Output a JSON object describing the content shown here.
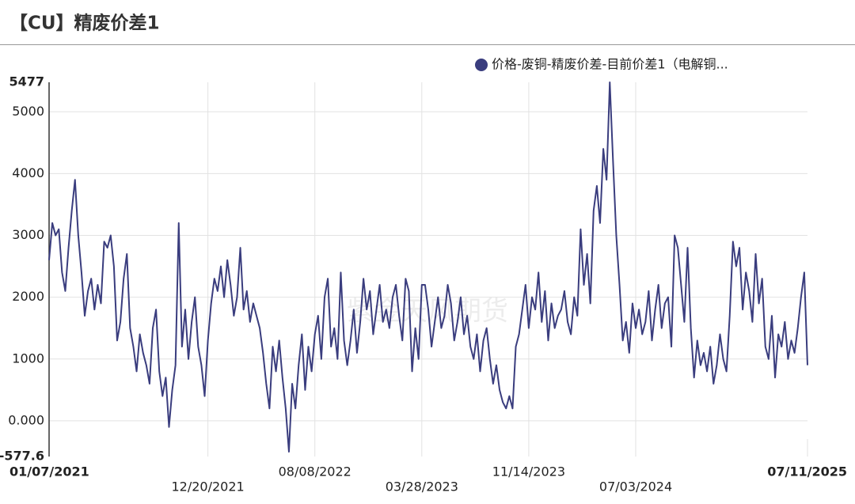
{
  "chart_data": {
    "type": "line",
    "title": "【CU】精废价差1",
    "watermark": "紫金天风期货",
    "categories": [
      "01/07/2021",
      null,
      null,
      null,
      null,
      null,
      null,
      null,
      null,
      null,
      null,
      null,
      null,
      null,
      null,
      null,
      null,
      null,
      null,
      null,
      null,
      null,
      null,
      null,
      null,
      null,
      null,
      null,
      null,
      null,
      null,
      null,
      null,
      null,
      null,
      null,
      null,
      null,
      null,
      null,
      null,
      null,
      null,
      null,
      null,
      null,
      null,
      null,
      null,
      "12/20/2021",
      null,
      null,
      null,
      null,
      null,
      null,
      null,
      null,
      null,
      null,
      null,
      null,
      null,
      null,
      null,
      null,
      null,
      null,
      null,
      null,
      null,
      null,
      null,
      null,
      null,
      null,
      null,
      null,
      null,
      null,
      null,
      null,
      "08/08/2022",
      null,
      null,
      null,
      null,
      null,
      null,
      null,
      null,
      null,
      null,
      null,
      null,
      null,
      null,
      null,
      null,
      null,
      null,
      null,
      null,
      null,
      null,
      null,
      null,
      null,
      null,
      null,
      null,
      null,
      null,
      null,
      null,
      "03/28/2023",
      null,
      null,
      null,
      null,
      null,
      null,
      null,
      null,
      null,
      null,
      null,
      null,
      null,
      null,
      null,
      null,
      null,
      null,
      null,
      null,
      null,
      null,
      null,
      null,
      null,
      null,
      null,
      null,
      null,
      null,
      null,
      null,
      "11/14/2023",
      null,
      null,
      null,
      null,
      null,
      null,
      null,
      null,
      null,
      null,
      null,
      null,
      null,
      null,
      null,
      null,
      null,
      null,
      null,
      null,
      null,
      null,
      null,
      null,
      null,
      null,
      null,
      null,
      null,
      null,
      null,
      null,
      "07/03/2024",
      null,
      null,
      null,
      null,
      null,
      null,
      null,
      null,
      null,
      null,
      null,
      null,
      null,
      null,
      null,
      null,
      null,
      null,
      null,
      null,
      null,
      null,
      null,
      null,
      null,
      null,
      null,
      null,
      null,
      null,
      null,
      null,
      null,
      null,
      null,
      null,
      null,
      null,
      null,
      null,
      null,
      null,
      null,
      null,
      null,
      null,
      null,
      null,
      null,
      null,
      null,
      null,
      "07/11/2025"
    ],
    "series": [
      {
        "name": "价格-废铜-精废价差-目前价差1（电解铜...",
        "color": "#3a3d7e",
        "values": [
          2600,
          3200,
          3000,
          3100,
          2400,
          2100,
          2800,
          3400,
          3900,
          3000,
          2400,
          1700,
          2100,
          2300,
          1800,
          2200,
          1900,
          2900,
          2800,
          3000,
          2500,
          1300,
          1600,
          2300,
          2700,
          1500,
          1200,
          800,
          1400,
          1100,
          900,
          600,
          1500,
          1800,
          800,
          400,
          700,
          -100,
          500,
          900,
          3200,
          1200,
          1800,
          1000,
          1600,
          2000,
          1200,
          900,
          400,
          1300,
          1900,
          2300,
          2100,
          2500,
          2000,
          2600,
          2200,
          1700,
          2000,
          2800,
          1800,
          2100,
          1600,
          1900,
          1700,
          1500,
          1100,
          600,
          200,
          1200,
          800,
          1300,
          700,
          200,
          -500,
          600,
          200,
          900,
          1400,
          500,
          1200,
          800,
          1400,
          1700,
          1000,
          2000,
          2300,
          1200,
          1500,
          1000,
          2400,
          1300,
          900,
          1300,
          1800,
          1100,
          1600,
          2300,
          1800,
          2100,
          1400,
          1800,
          2200,
          1600,
          1800,
          1500,
          2000,
          2200,
          1700,
          1300,
          2300,
          2100,
          800,
          1500,
          1000,
          2200,
          2200,
          1800,
          1200,
          1600,
          2000,
          1500,
          1700,
          2200,
          1900,
          1300,
          1600,
          2000,
          1400,
          1700,
          1200,
          1000,
          1400,
          800,
          1300,
          1500,
          1000,
          600,
          900,
          500,
          300,
          200,
          400,
          200,
          1200,
          1400,
          1800,
          2200,
          1500,
          2000,
          1800,
          2400,
          1600,
          2100,
          1300,
          1900,
          1500,
          1700,
          1800,
          2100,
          1600,
          1400,
          2000,
          1700,
          3100,
          2200,
          2700,
          1900,
          3400,
          3800,
          3200,
          4400,
          3900,
          5477,
          4200,
          3000,
          2200,
          1300,
          1600,
          1100,
          1900,
          1500,
          1800,
          1400,
          1600,
          2100,
          1300,
          1800,
          2200,
          1500,
          1900,
          2000,
          1200,
          3000,
          2800,
          2200,
          1600,
          2800,
          1500,
          700,
          1300,
          900,
          1100,
          800,
          1200,
          600,
          900,
          1400,
          1000,
          800,
          1700,
          2900,
          2500,
          2800,
          1800,
          2400,
          2100,
          1600,
          2700,
          1900,
          2300,
          1200,
          1000,
          1700,
          700,
          1400,
          1200,
          1600,
          1000,
          1300,
          1100,
          1500,
          2000,
          2400,
          900
        ]
      }
    ],
    "ylim": [
      -577.6,
      5477
    ],
    "yticks": [
      -577.6,
      {
        "value": 0,
        "label": "0.000"
      },
      1000,
      2000,
      3000,
      4000,
      5000,
      5477
    ],
    "grid": true
  }
}
